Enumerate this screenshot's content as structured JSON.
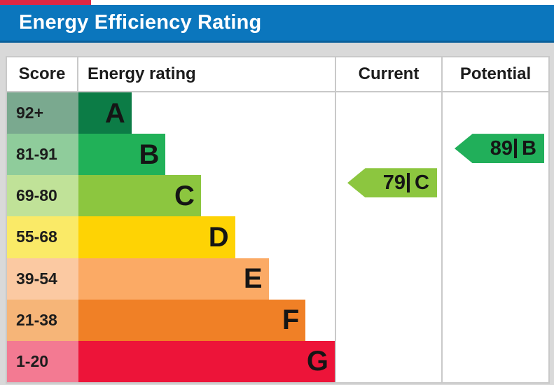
{
  "title": "Energy Efficiency Rating",
  "colors": {
    "page_bg": "#d9d9d9",
    "banner_bg": "#0b76bd",
    "banner_edge": "#0a5f9a",
    "banner_text": "#ffffff",
    "table_bg": "#ffffff",
    "border": "#c9c9c9",
    "text": "#1c1c1c",
    "top_accent": "#e02744"
  },
  "table": {
    "headers": {
      "score": "Score",
      "rating": "Energy rating",
      "current": "Current",
      "potential": "Potential"
    }
  },
  "chart_data": {
    "type": "bar",
    "title": "Energy Efficiency Rating",
    "xlabel": "",
    "ylabel": "Score",
    "legend": [
      "Current",
      "Potential"
    ],
    "bands": [
      {
        "band": "A",
        "score_range": "92+",
        "width_pct": 20.7,
        "bar_color": "#0c7c46",
        "tint_color": "#7aa98f"
      },
      {
        "band": "B",
        "score_range": "81-91",
        "width_pct": 34.0,
        "bar_color": "#21b158",
        "tint_color": "#8fcc9b"
      },
      {
        "band": "C",
        "score_range": "69-80",
        "width_pct": 47.8,
        "bar_color": "#8cc63f",
        "tint_color": "#c0e298"
      },
      {
        "band": "D",
        "score_range": "55-68",
        "width_pct": 61.1,
        "bar_color": "#fed304",
        "tint_color": "#faea67"
      },
      {
        "band": "E",
        "score_range": "39-54",
        "width_pct": 74.2,
        "bar_color": "#fbaa65",
        "tint_color": "#fbc9a2"
      },
      {
        "band": "F",
        "score_range": "21-38",
        "width_pct": 88.6,
        "bar_color": "#f08026",
        "tint_color": "#f6b578"
      },
      {
        "band": "G",
        "score_range": "1-20",
        "width_pct": 100.0,
        "bar_color": "#ed1439",
        "tint_color": "#f37a92"
      }
    ],
    "current": {
      "value": "79",
      "band": "C",
      "color": "#8cc63f"
    },
    "potential": {
      "value": "89",
      "band": "B",
      "color": "#21af5a"
    }
  }
}
